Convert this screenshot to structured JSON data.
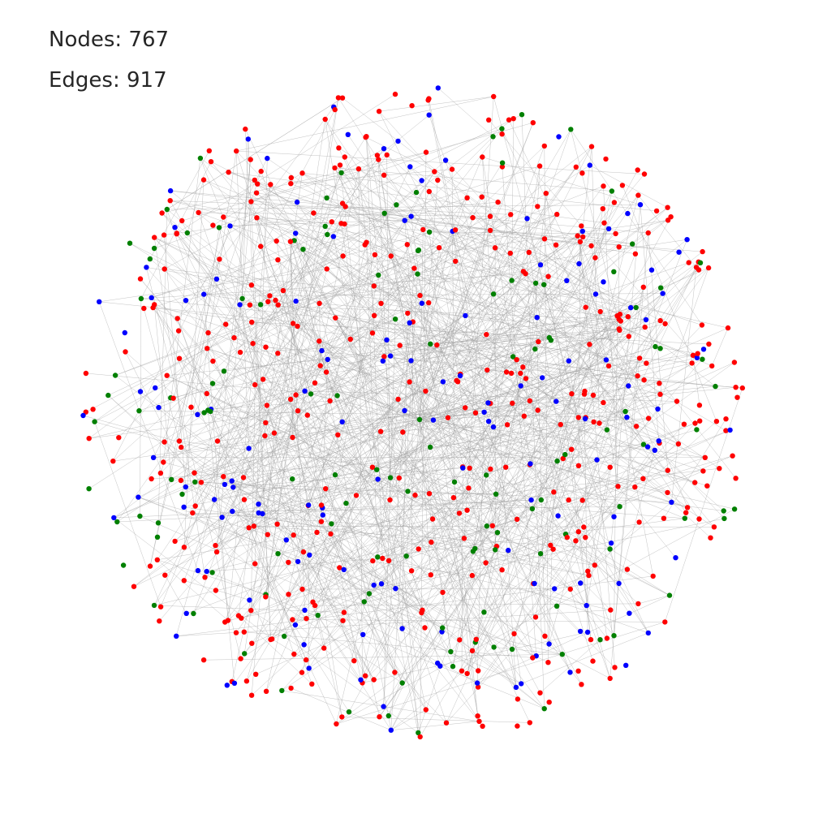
{
  "stats": {
    "nodes_label": "Nodes: 767",
    "edges_label": "Edges: 917"
  },
  "graph": {
    "node_count": 767,
    "edge_count": 917,
    "node_colors": {
      "red": "#ff0000",
      "green": "#008000",
      "blue": "#0000ff"
    },
    "edge_color": "#a0a0a0",
    "hub_color": "#008000"
  }
}
